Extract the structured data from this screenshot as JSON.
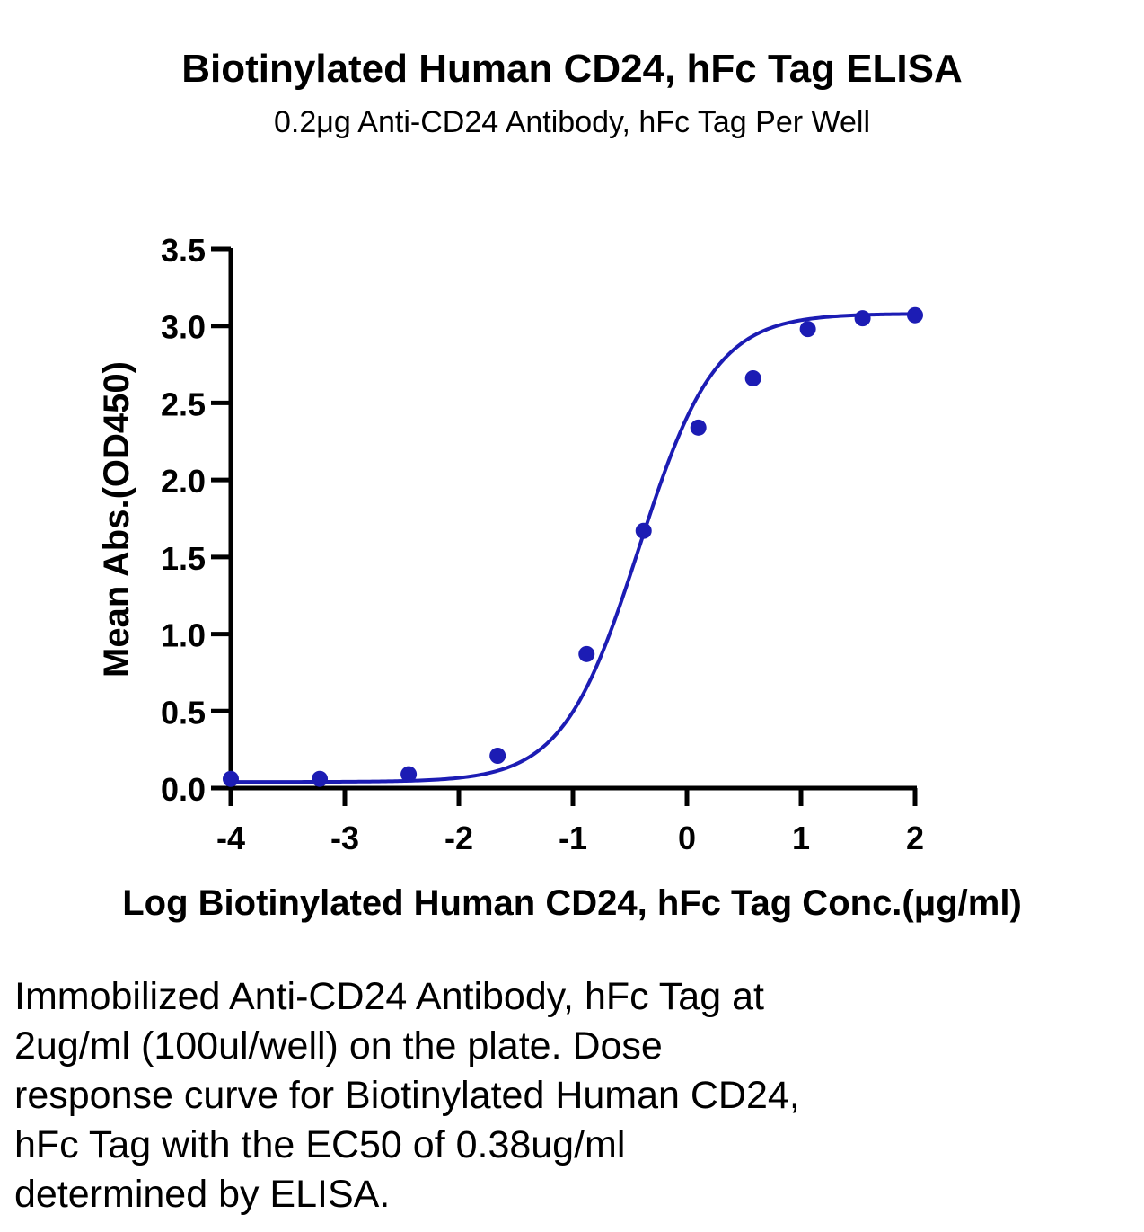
{
  "chart_data": {
    "type": "scatter",
    "title": "Biotinylated Human CD24, hFc Tag ELISA",
    "subtitle": "0.2μg Anti-CD24 Antibody, hFc Tag Per Well",
    "xlabel": "Log Biotinylated Human CD24, hFc Tag Conc.(μg/ml)",
    "ylabel": "Mean Abs.(OD450)",
    "xlim": [
      -4,
      2
    ],
    "ylim": [
      0,
      3.5
    ],
    "x_ticks": [
      "-4",
      "-3",
      "-2",
      "-1",
      "0",
      "1",
      "2"
    ],
    "y_ticks": [
      "0.0",
      "0.5",
      "1.0",
      "1.5",
      "2.0",
      "2.5",
      "3.0",
      "3.5"
    ],
    "grid": false,
    "color": "#1c1cb4",
    "series": [
      {
        "x": [
          -4.0,
          -3.22,
          -2.44,
          -1.66,
          -0.88,
          -0.38,
          0.1,
          0.58,
          1.06,
          1.54,
          2.0
        ],
        "y": [
          0.06,
          0.06,
          0.09,
          0.21,
          0.87,
          1.67,
          2.34,
          2.66,
          2.98,
          3.05,
          3.07
        ]
      }
    ],
    "fit": {
      "bottom": 0.04,
      "top": 3.08,
      "log_ec50": -0.42,
      "hill": 1.3
    }
  },
  "caption": "Immobilized Anti-CD24 Antibody, hFc Tag at\n2ug/ml (100ul/well) on the plate. Dose\nresponse curve for Biotinylated Human CD24,\nhFc Tag with the EC50 of 0.38ug/ml\ndetermined by ELISA."
}
